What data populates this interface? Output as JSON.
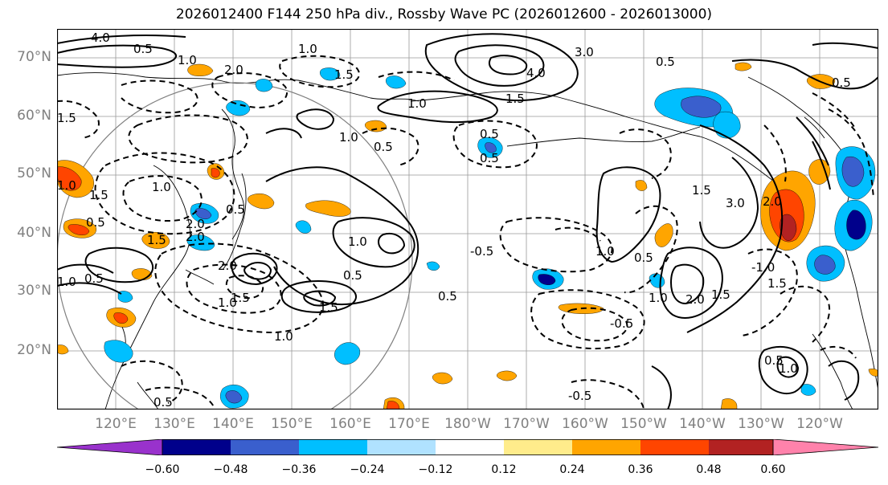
{
  "title": "2026012400 F144 250 hPa div., Rossby Wave PC (2026012600 - 2026013000)",
  "lat_labels": [
    "70°N",
    "60°N",
    "50°N",
    "40°N",
    "30°N",
    "20°N"
  ],
  "lon_labels": [
    "120°E",
    "130°E",
    "140°E",
    "150°E",
    "160°E",
    "170°E",
    "180°W",
    "170°W",
    "160°W",
    "150°W",
    "140°W",
    "130°W",
    "120°W"
  ],
  "colorbar": {
    "ticks": [
      "−0.60",
      "−0.48",
      "−0.36",
      "−0.24",
      "−0.12",
      "0.12",
      "0.24",
      "0.36",
      "0.48",
      "0.60"
    ],
    "colors": [
      "#9932CC",
      "#00008B",
      "#3A5FCD",
      "#00BFFF",
      "#B0E2FF",
      "#FFFFFF",
      "#FFEC8B",
      "#FFA500",
      "#FF4500",
      "#B22222",
      "#FF82AB"
    ]
  },
  "contour_labels": [
    "4.0",
    "1.0",
    "2.0",
    "1.5",
    "0.5",
    "1.0",
    "1.5",
    "1.0",
    "0.5",
    "4.0",
    "3.0",
    "0.5",
    "1.0",
    "1.5",
    "0.5",
    "1.0",
    "0.5",
    "1.5",
    "2.0",
    "0.5",
    "1.0",
    "-0.5",
    "0.5",
    "1.0",
    "1.5",
    "0.5",
    "1.0",
    "0.5",
    "1.5",
    "-0.5",
    "1.0",
    "2.0",
    "1.5",
    "-1.0",
    "3.0",
    "1.0",
    "2.0",
    "1.5",
    "0.5",
    "0.5",
    "1.0",
    "-0.5",
    "0.5",
    "1.5",
    "0.5",
    "0.5",
    "1.0",
    "2.0",
    "1.5",
    "1.0",
    "2.0"
  ]
}
